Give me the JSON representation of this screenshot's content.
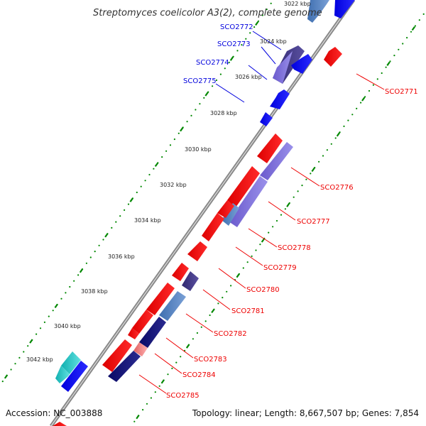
{
  "title": "Streptomyces coelicolor A3(2), complete genome",
  "accession": "Accession: NC_003888",
  "topology": "Topology: linear; Length: 8,667,507 bp; Genes: 7,854",
  "colors": {
    "forward": "#ff0000",
    "reverse": "#0000ff",
    "forward_label": "#ee0000",
    "reverse_label": "#0000dd",
    "ruler": "#008800",
    "backbone": "#888888"
  },
  "ticks": [
    "3022 kbp",
    "3024 kbp",
    "3026 kbp",
    "3028 kbp",
    "3030 kbp",
    "3032 kbp",
    "3034 kbp",
    "3036 kbp",
    "3038 kbp",
    "3040 kbp",
    "3042 kbp"
  ],
  "reverse_genes": [
    "SCO2772",
    "SCO2773",
    "SCO2774",
    "SCO2775"
  ],
  "forward_genes": [
    "SCO2771",
    "SCO2776",
    "SCO2777",
    "SCO2778",
    "SCO2779",
    "SCO2780",
    "SCO2781",
    "SCO2782",
    "SCO2783",
    "SCO2784",
    "SCO2785"
  ]
}
